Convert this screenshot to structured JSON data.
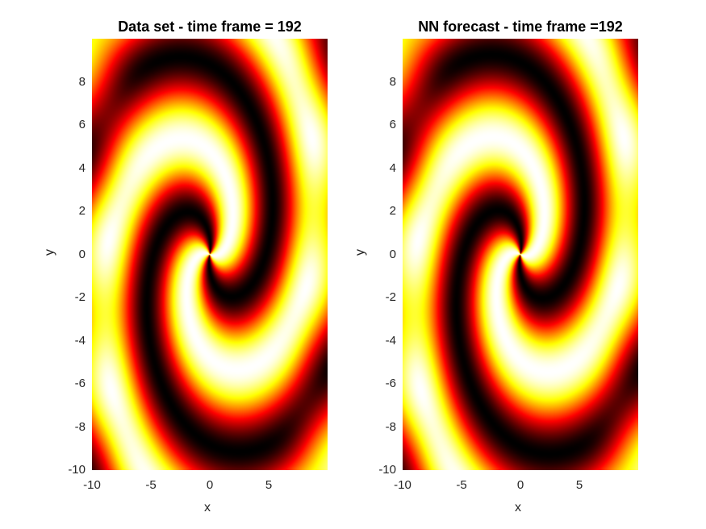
{
  "chart_data": [
    {
      "type": "heatmap",
      "title": "Data set - time frame = 192",
      "xlabel": "x",
      "ylabel": "y",
      "xlim": [
        -10,
        10
      ],
      "ylim": [
        -10,
        10
      ],
      "xticks": [
        -10,
        -5,
        0,
        5
      ],
      "yticks": [
        -10,
        -8,
        -6,
        -4,
        -2,
        0,
        2,
        4,
        6,
        8
      ],
      "colormap": "hot",
      "pattern": "two-arm spiral",
      "time_frame": 192
    },
    {
      "type": "heatmap",
      "title": "NN forecast - time frame =192",
      "xlabel": "x",
      "ylabel": "y",
      "xlim": [
        -10,
        10
      ],
      "ylim": [
        -10,
        10
      ],
      "xticks": [
        -10,
        -5,
        0,
        5
      ],
      "yticks": [
        -10,
        -8,
        -6,
        -4,
        -2,
        0,
        2,
        4,
        6,
        8
      ],
      "colormap": "hot",
      "pattern": "two-arm spiral",
      "time_frame": 192
    }
  ],
  "colors": {
    "background": "#ffffff",
    "text": "#262626"
  }
}
